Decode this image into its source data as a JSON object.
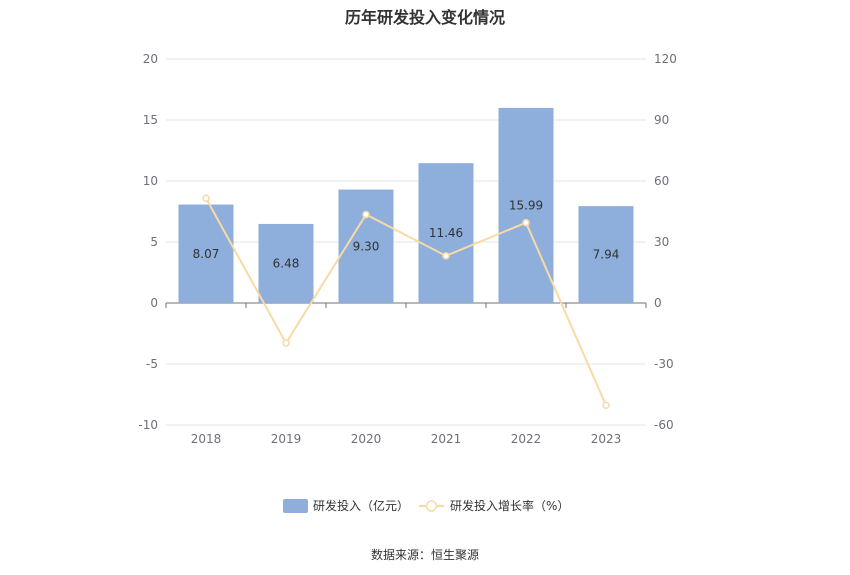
{
  "chart_data": {
    "type": "bar",
    "title": "历年研发投入变化情况",
    "categories": [
      "2018",
      "2019",
      "2020",
      "2021",
      "2022",
      "2023"
    ],
    "series": [
      {
        "name": "研发投入（亿元）",
        "type": "bar",
        "axis": "left",
        "color": "#8eaedb",
        "values": [
          8.07,
          6.48,
          9.3,
          11.46,
          15.99,
          7.94
        ],
        "labels": [
          "8.07",
          "6.48",
          "9.30",
          "11.46",
          "15.99",
          "7.94"
        ]
      },
      {
        "name": "研发投入增长率（%）",
        "type": "line",
        "axis": "right",
        "color": "#f9d9a6",
        "values": [
          51.5,
          -19.7,
          43.5,
          23.2,
          39.5,
          -50.3
        ]
      }
    ],
    "left_axis": {
      "min": -10,
      "max": 20,
      "ticks": [
        "20",
        "15",
        "10",
        "5",
        "0",
        "-5",
        "-10"
      ]
    },
    "right_axis": {
      "min": -60,
      "max": 120,
      "ticks": [
        "120",
        "90",
        "60",
        "30",
        "0",
        "-30",
        "-60"
      ]
    },
    "grid": true,
    "legend_position": "bottom-center"
  },
  "footer": {
    "source": "数据来源：恒生聚源"
  }
}
